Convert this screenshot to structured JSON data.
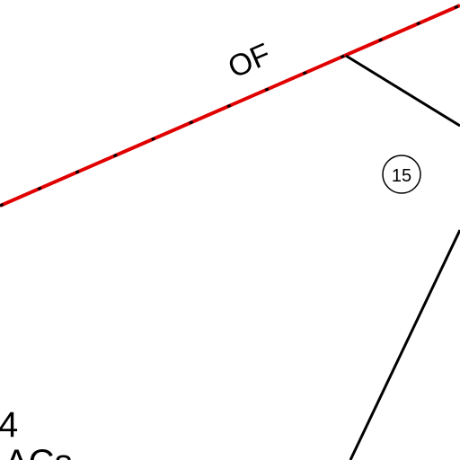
{
  "labels": {
    "road": "OF",
    "lot_number": "15",
    "parcel_number": "4",
    "area_unit": "ACs"
  }
}
